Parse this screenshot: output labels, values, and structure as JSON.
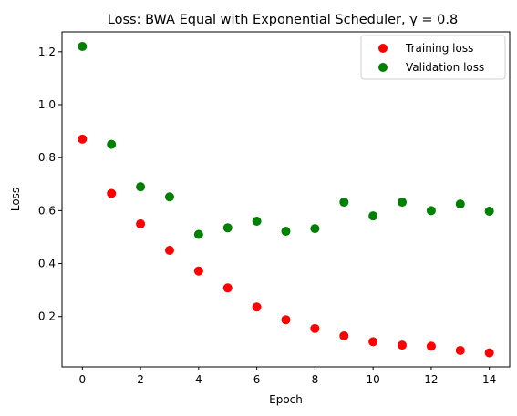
{
  "chart_data": {
    "type": "scatter",
    "title": "Loss: BWA Equal with Exponential Scheduler, γ = 0.8",
    "xlabel": "Epoch",
    "ylabel": "Loss",
    "xlim": [
      -0.7,
      14.7
    ],
    "ylim": [
      0.01,
      1.275
    ],
    "xticks": [
      0,
      2,
      4,
      6,
      8,
      10,
      12,
      14
    ],
    "yticks": [
      0.2,
      0.4,
      0.6,
      0.8,
      1.0,
      1.2
    ],
    "xtick_labels": [
      "0",
      "2",
      "4",
      "6",
      "8",
      "10",
      "12",
      "14"
    ],
    "ytick_labels": [
      "0.2",
      "0.4",
      "0.6",
      "0.8",
      "1.0",
      "1.2"
    ],
    "grid": false,
    "legend_position": "top-right",
    "x": [
      0,
      1,
      2,
      3,
      4,
      5,
      6,
      7,
      8,
      9,
      10,
      11,
      12,
      13,
      14
    ],
    "series": [
      {
        "name": "Training loss",
        "color": "#ff0000",
        "values": [
          0.87,
          0.665,
          0.55,
          0.45,
          0.372,
          0.308,
          0.236,
          0.188,
          0.155,
          0.127,
          0.105,
          0.092,
          0.088,
          0.072,
          0.063
        ]
      },
      {
        "name": "Validation loss",
        "color": "#008000",
        "values": [
          1.22,
          0.85,
          0.69,
          0.652,
          0.51,
          0.535,
          0.56,
          0.522,
          0.532,
          0.632,
          0.58,
          0.632,
          0.6,
          0.625,
          0.598
        ]
      }
    ]
  }
}
